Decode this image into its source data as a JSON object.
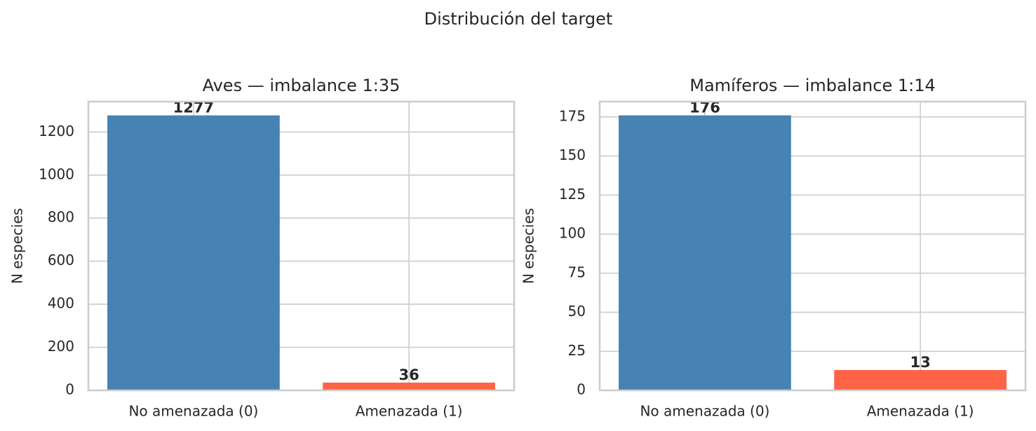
{
  "title": "Distribución del target",
  "chart_data": [
    {
      "type": "bar",
      "title": "Aves — imbalance 1:35",
      "y_label": "N especies",
      "categories": [
        "No amenazada (0)",
        "Amenazada (1)"
      ],
      "values": [
        1277,
        36
      ],
      "colors": [
        "#4682b4",
        "#ff6347"
      ],
      "ylim": [
        0,
        1341
      ],
      "yticks": [
        0,
        200,
        400,
        600,
        800,
        1000,
        1200
      ],
      "grid": true
    },
    {
      "type": "bar",
      "title": "Mamíferos — imbalance 1:14",
      "y_label": "N especies",
      "categories": [
        "No amenazada (0)",
        "Amenazada (1)"
      ],
      "values": [
        176,
        13
      ],
      "colors": [
        "#4682b4",
        "#ff6347"
      ],
      "ylim": [
        0,
        184.8
      ],
      "yticks": [
        0,
        25,
        50,
        75,
        100,
        125,
        150,
        175
      ],
      "grid": true
    }
  ]
}
